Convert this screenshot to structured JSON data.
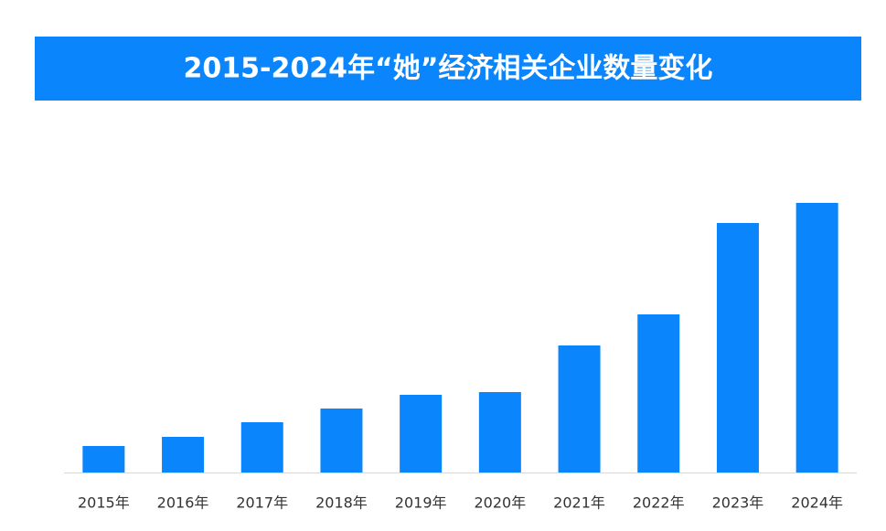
{
  "chart_data": {
    "type": "bar",
    "title": "2015-2024年“她”经济相关企业数量变化",
    "categories": [
      "2015年",
      "2016年",
      "2017年",
      "2018年",
      "2019年",
      "2020年",
      "2021年",
      "2022年",
      "2023年",
      "2024年"
    ],
    "values": [
      29,
      39,
      55,
      70,
      85,
      88,
      139,
      173,
      273,
      295
    ],
    "color": "#0a85fb",
    "ylim": [
      0,
      300
    ]
  }
}
